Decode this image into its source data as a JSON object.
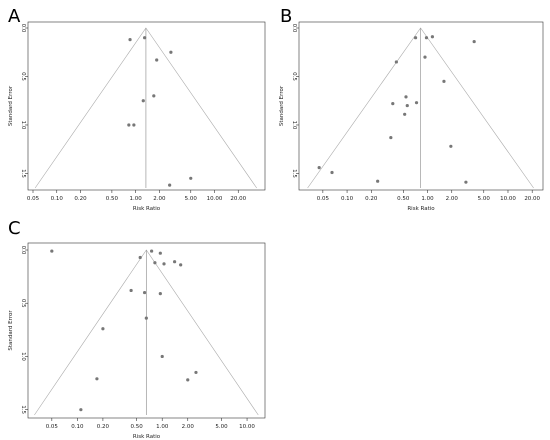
{
  "chart_data": [
    {
      "type": "scatter",
      "panel": "A",
      "xlabel": "Risk Ratio",
      "ylabel": "Standard Error",
      "x_scale": "log",
      "y_reversed": true,
      "xlim": [
        0.05,
        40
      ],
      "ylim": [
        0,
        1.65
      ],
      "x_ticks": [
        "0.05",
        "0.10",
        "0.20",
        "0.50",
        "1.00",
        "2.00",
        "5.00",
        "10.00",
        "20.00"
      ],
      "y_ticks": [
        "0.0",
        "0.5",
        "1.0",
        "1.5"
      ],
      "pooled_estimate": 1.35,
      "points": [
        {
          "x": 0.85,
          "y": 0.12
        },
        {
          "x": 1.3,
          "y": 0.1
        },
        {
          "x": 2.8,
          "y": 0.25
        },
        {
          "x": 1.85,
          "y": 0.33
        },
        {
          "x": 1.7,
          "y": 0.7
        },
        {
          "x": 1.25,
          "y": 0.75
        },
        {
          "x": 0.82,
          "y": 1.0
        },
        {
          "x": 0.95,
          "y": 1.0
        },
        {
          "x": 5.0,
          "y": 1.55
        },
        {
          "x": 2.7,
          "y": 1.62
        }
      ]
    },
    {
      "type": "scatter",
      "panel": "B",
      "xlabel": "Risk Ratio",
      "ylabel": "Standard Error",
      "x_scale": "log",
      "y_reversed": true,
      "xlim": [
        0.03,
        25
      ],
      "ylim": [
        0,
        1.65
      ],
      "x_ticks": [
        "0.05",
        "0.10",
        "0.20",
        "0.50",
        "1.00",
        "2.00",
        "5.00",
        "10.00",
        "20.00"
      ],
      "y_ticks": [
        "0.0",
        "0.5",
        "1.0",
        "1.5"
      ],
      "pooled_estimate": 0.82,
      "points": [
        {
          "x": 0.71,
          "y": 0.1
        },
        {
          "x": 0.97,
          "y": 0.1
        },
        {
          "x": 1.15,
          "y": 0.09
        },
        {
          "x": 3.8,
          "y": 0.14
        },
        {
          "x": 0.93,
          "y": 0.3
        },
        {
          "x": 0.41,
          "y": 0.35
        },
        {
          "x": 1.6,
          "y": 0.55
        },
        {
          "x": 0.54,
          "y": 0.71
        },
        {
          "x": 0.37,
          "y": 0.78
        },
        {
          "x": 0.56,
          "y": 0.8
        },
        {
          "x": 0.73,
          "y": 0.77
        },
        {
          "x": 0.52,
          "y": 0.89
        },
        {
          "x": 0.35,
          "y": 1.13
        },
        {
          "x": 1.95,
          "y": 1.22
        },
        {
          "x": 0.045,
          "y": 1.44
        },
        {
          "x": 0.065,
          "y": 1.49
        },
        {
          "x": 0.24,
          "y": 1.58
        },
        {
          "x": 3.0,
          "y": 1.59
        }
      ]
    },
    {
      "type": "scatter",
      "panel": "C",
      "xlabel": "Risk Ratio",
      "ylabel": "Standard Error",
      "x_scale": "log",
      "y_reversed": true,
      "xlim": [
        0.03,
        15
      ],
      "ylim": [
        0,
        1.55
      ],
      "x_ticks": [
        "0.05",
        "0.10",
        "0.20",
        "0.50",
        "1.00",
        "2.00",
        "5.00",
        "10.00"
      ],
      "y_ticks": [
        "0.0",
        "0.5",
        "1.0",
        "1.5"
      ],
      "pooled_estimate": 0.65,
      "points": [
        {
          "x": 0.05,
          "y": 0.01
        },
        {
          "x": 0.75,
          "y": 0.01
        },
        {
          "x": 0.95,
          "y": 0.03
        },
        {
          "x": 0.55,
          "y": 0.07
        },
        {
          "x": 0.82,
          "y": 0.12
        },
        {
          "x": 1.05,
          "y": 0.13
        },
        {
          "x": 1.4,
          "y": 0.11
        },
        {
          "x": 1.65,
          "y": 0.14
        },
        {
          "x": 0.43,
          "y": 0.38
        },
        {
          "x": 0.62,
          "y": 0.4
        },
        {
          "x": 0.95,
          "y": 0.41
        },
        {
          "x": 0.65,
          "y": 0.64
        },
        {
          "x": 0.2,
          "y": 0.74
        },
        {
          "x": 1.0,
          "y": 1.0
        },
        {
          "x": 0.17,
          "y": 1.21
        },
        {
          "x": 2.5,
          "y": 1.15
        },
        {
          "x": 2.0,
          "y": 1.22
        },
        {
          "x": 0.11,
          "y": 1.5
        }
      ]
    }
  ]
}
